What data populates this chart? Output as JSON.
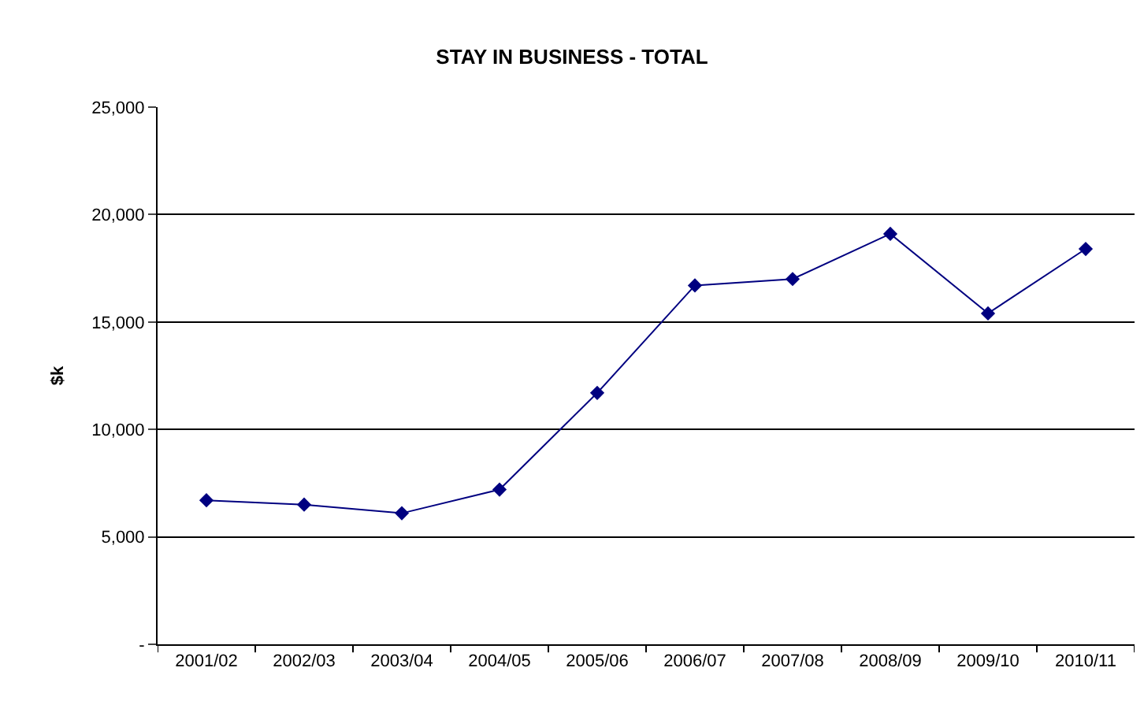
{
  "chart_data": {
    "type": "line",
    "title": "STAY IN BUSINESS - TOTAL",
    "ylabel": "$k",
    "categories": [
      "2001/02",
      "2002/03",
      "2003/04",
      "2004/05",
      "2005/06",
      "2006/07",
      "2007/08",
      "2008/09",
      "2009/10",
      "2010/11"
    ],
    "series": [
      {
        "color": "#000080",
        "values": [
          6700,
          6500,
          6100,
          7200,
          11700,
          16700,
          17000,
          19100,
          15400,
          18400
        ]
      }
    ],
    "ylim": [
      0,
      25000
    ],
    "yticks": [
      {
        "value": 0,
        "label": "-"
      },
      {
        "value": 5000,
        "label": "5,000"
      },
      {
        "value": 10000,
        "label": "10,000"
      },
      {
        "value": 15000,
        "label": "15,000"
      },
      {
        "value": 20000,
        "label": "20,000"
      },
      {
        "value": 25000,
        "label": "25,000"
      }
    ],
    "grid": "y",
    "legend": false,
    "marker": "diamond",
    "line_style": "solid"
  }
}
